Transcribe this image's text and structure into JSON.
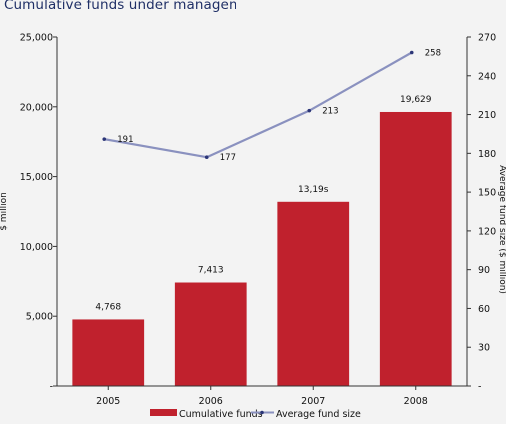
{
  "chart_data": {
    "type": "bar",
    "title": "Cumulative funds under management",
    "categories": [
      "2005",
      "2006",
      "2007",
      "2008"
    ],
    "series": [
      {
        "name": "Cumulative funds",
        "type": "bar",
        "axis": "left",
        "values": [
          4768,
          7413,
          13195,
          19629
        ],
        "labels": [
          "4,768",
          "7,413",
          "13,19ѕ",
          "19,629"
        ],
        "color": "#c0212d"
      },
      {
        "name": "Average fund size",
        "type": "line",
        "axis": "right",
        "values": [
          191,
          177,
          213,
          258
        ],
        "labels": [
          "191",
          "177",
          "213",
          "258"
        ],
        "color": "#8a91bf"
      }
    ],
    "ylabel": "$ million",
    "y2label": "Average fund size ($ million)",
    "ylim": [
      0,
      25000
    ],
    "y2lim": [
      0,
      270
    ],
    "yticks": [
      {
        "value": 0,
        "label": "-"
      },
      {
        "value": 5000,
        "label": "5,000"
      },
      {
        "value": 10000,
        "label": "10,000"
      },
      {
        "value": 15000,
        "label": "15,000"
      },
      {
        "value": 20000,
        "label": "20,000"
      },
      {
        "value": 25000,
        "label": "25,000"
      }
    ],
    "y2ticks": [
      {
        "value": 0,
        "label": "-"
      },
      {
        "value": 30,
        "label": "30"
      },
      {
        "value": 60,
        "label": "60"
      },
      {
        "value": 90,
        "label": "90"
      },
      {
        "value": 120,
        "label": "120"
      },
      {
        "value": 150,
        "label": "150"
      },
      {
        "value": 180,
        "label": "180"
      },
      {
        "value": 210,
        "label": "210"
      },
      {
        "value": 240,
        "label": "240"
      },
      {
        "value": 270,
        "label": "270"
      }
    ],
    "grid": false,
    "legend": "bottom-center"
  }
}
